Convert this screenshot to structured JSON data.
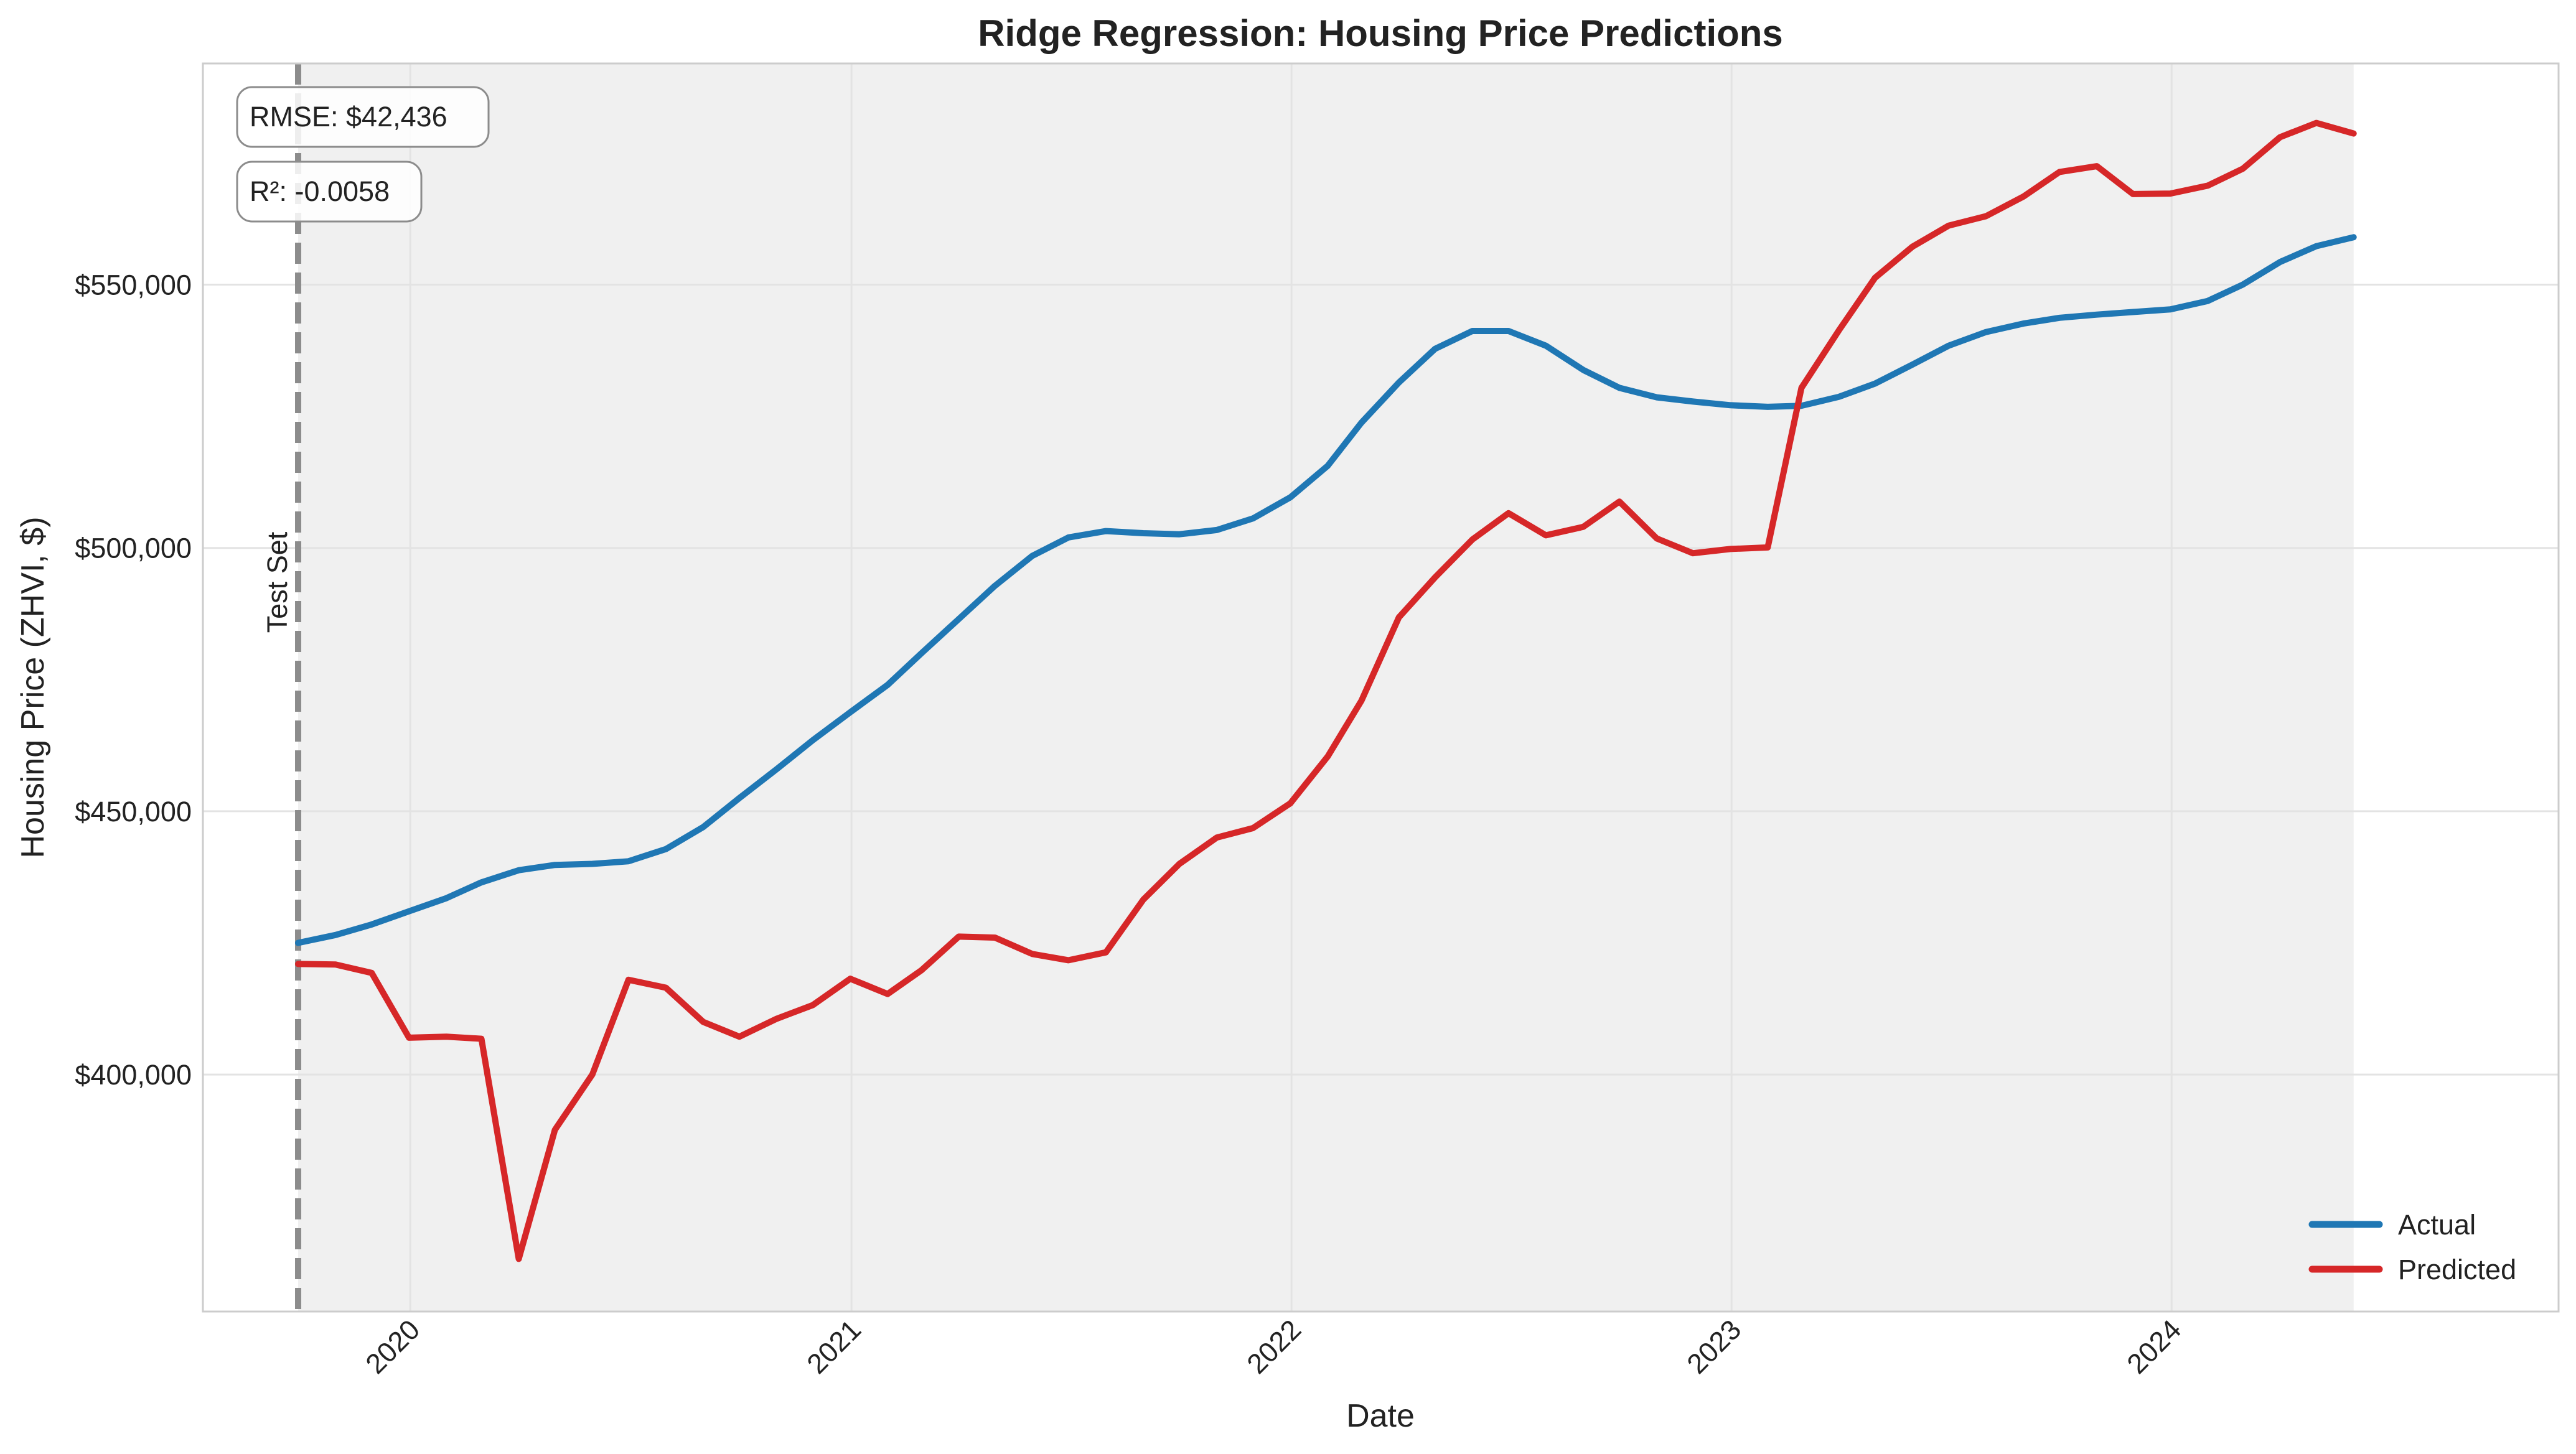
{
  "chart_data": {
    "type": "line",
    "title": "Ridge Regression: Housing Price Predictions",
    "xlabel": "Date",
    "ylabel": "Housing Price (ZHVI, $)",
    "x_ticks": [
      "2020",
      "2021",
      "2022",
      "2023",
      "2024"
    ],
    "y_ticks": [
      "$400,000",
      "$450,000",
      "$500,000",
      "$550,000"
    ],
    "y_tick_values": [
      400000,
      450000,
      500000,
      550000
    ],
    "xlim": [
      "2019-07-13",
      "2024-11-17"
    ],
    "ylim": [
      355000,
      592000
    ],
    "grid": true,
    "legend_position": "bottom-right",
    "x": [
      "2019-09-30",
      "2019-10-31",
      "2019-11-30",
      "2019-12-31",
      "2020-01-31",
      "2020-02-29",
      "2020-03-31",
      "2020-04-30",
      "2020-05-31",
      "2020-06-30",
      "2020-07-31",
      "2020-08-31",
      "2020-09-30",
      "2020-10-31",
      "2020-11-30",
      "2020-12-31",
      "2021-01-31",
      "2021-02-28",
      "2021-03-31",
      "2021-04-30",
      "2021-05-31",
      "2021-06-30",
      "2021-07-31",
      "2021-08-31",
      "2021-09-30",
      "2021-10-31",
      "2021-11-30",
      "2021-12-31",
      "2022-01-31",
      "2022-02-28",
      "2022-03-31",
      "2022-04-30",
      "2022-05-31",
      "2022-06-30",
      "2022-07-31",
      "2022-08-31",
      "2022-09-30",
      "2022-10-31",
      "2022-11-30",
      "2022-12-31",
      "2023-01-31",
      "2023-02-28",
      "2023-03-31",
      "2023-04-30",
      "2023-05-31",
      "2023-06-30",
      "2023-07-31",
      "2023-08-31",
      "2023-09-30",
      "2023-10-31",
      "2023-11-30",
      "2023-12-31",
      "2024-01-31",
      "2024-02-29",
      "2024-03-31",
      "2024-04-30",
      "2024-05-31"
    ],
    "series": [
      {
        "name": "Actual",
        "color": "#1f77b4",
        "values": [
          425000,
          426500,
          428500,
          431000,
          433500,
          436500,
          438800,
          439800,
          440000,
          440500,
          442800,
          447000,
          452500,
          458000,
          463500,
          468800,
          474000,
          480000,
          486500,
          492800,
          498500,
          502000,
          503200,
          502800,
          502600,
          503400,
          505600,
          509600,
          515600,
          523800,
          531400,
          537800,
          541200,
          541200,
          538400,
          533800,
          530400,
          528600,
          527800,
          527100,
          526800,
          527000,
          528700,
          531200,
          534800,
          538400,
          541000,
          542600,
          543700,
          544300,
          544800,
          545300,
          546900,
          550000,
          554300,
          557300,
          559000
        ]
      },
      {
        "name": "Predicted",
        "color": "#d62728",
        "values": [
          421000,
          420900,
          419300,
          407000,
          407200,
          406800,
          365000,
          389500,
          400000,
          418000,
          416500,
          410000,
          407200,
          410600,
          413200,
          418200,
          415300,
          419800,
          426200,
          426000,
          422900,
          421700,
          423200,
          433200,
          440000,
          445000,
          446800,
          451500,
          460400,
          471000,
          486800,
          494400,
          501600,
          506600,
          502400,
          504000,
          508800,
          501800,
          499000,
          499800,
          500100,
          530400,
          541300,
          551300,
          557200,
          561200,
          563000,
          566700,
          571400,
          572500,
          567200,
          567300,
          568800,
          572000,
          578000,
          580700,
          578700
        ]
      }
    ],
    "annotations": {
      "rmse": "RMSE: $42,436",
      "r2": "R²: -0.0058",
      "test_set_label": "Test Set",
      "test_set_start": "2019-09-30"
    }
  }
}
